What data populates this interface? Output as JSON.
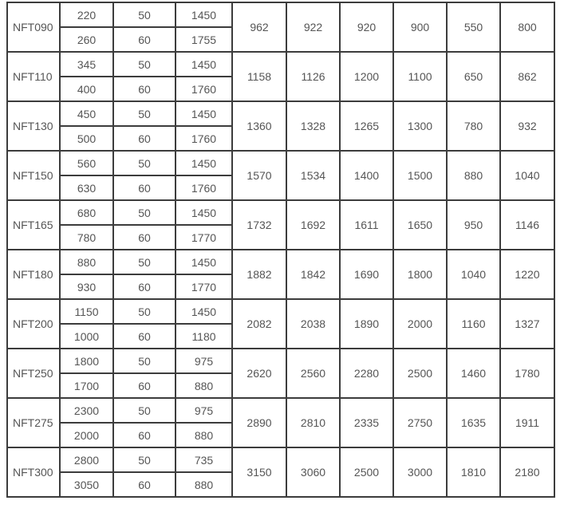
{
  "rows": [
    {
      "model": "NFT090",
      "sub": [
        [
          "220",
          "50",
          "1450"
        ],
        [
          "260",
          "60",
          "1755"
        ]
      ],
      "vals": [
        "962",
        "922",
        "920",
        "900",
        "550",
        "800"
      ]
    },
    {
      "model": "NFT110",
      "sub": [
        [
          "345",
          "50",
          "1450"
        ],
        [
          "400",
          "60",
          "1760"
        ]
      ],
      "vals": [
        "1158",
        "1126",
        "1200",
        "1100",
        "650",
        "862"
      ]
    },
    {
      "model": "NFT130",
      "sub": [
        [
          "450",
          "50",
          "1450"
        ],
        [
          "500",
          "60",
          "1760"
        ]
      ],
      "vals": [
        "1360",
        "1328",
        "1265",
        "1300",
        "780",
        "932"
      ]
    },
    {
      "model": "NFT150",
      "sub": [
        [
          "560",
          "50",
          "1450"
        ],
        [
          "630",
          "60",
          "1760"
        ]
      ],
      "vals": [
        "1570",
        "1534",
        "1400",
        "1500",
        "880",
        "1040"
      ]
    },
    {
      "model": "NFT165",
      "sub": [
        [
          "680",
          "50",
          "1450"
        ],
        [
          "780",
          "60",
          "1770"
        ]
      ],
      "vals": [
        "1732",
        "1692",
        "1611",
        "1650",
        "950",
        "1146"
      ]
    },
    {
      "model": "NFT180",
      "sub": [
        [
          "880",
          "50",
          "1450"
        ],
        [
          "930",
          "60",
          "1770"
        ]
      ],
      "vals": [
        "1882",
        "1842",
        "1690",
        "1800",
        "1040",
        "1220"
      ]
    },
    {
      "model": "NFT200",
      "sub": [
        [
          "1150",
          "50",
          "1450"
        ],
        [
          "1000",
          "60",
          "1180"
        ]
      ],
      "vals": [
        "2082",
        "2038",
        "1890",
        "2000",
        "1160",
        "1327"
      ]
    },
    {
      "model": "NFT250",
      "sub": [
        [
          "1800",
          "50",
          "975"
        ],
        [
          "1700",
          "60",
          "880"
        ]
      ],
      "vals": [
        "2620",
        "2560",
        "2280",
        "2500",
        "1460",
        "1780"
      ]
    },
    {
      "model": "NFT275",
      "sub": [
        [
          "2300",
          "50",
          "975"
        ],
        [
          "2000",
          "60",
          "880"
        ]
      ],
      "vals": [
        "2890",
        "2810",
        "2335",
        "2750",
        "1635",
        "1911"
      ]
    },
    {
      "model": "NFT300",
      "sub": [
        [
          "2800",
          "50",
          "735"
        ],
        [
          "3050",
          "60",
          "880"
        ]
      ],
      "vals": [
        "3150",
        "3060",
        "2500",
        "3000",
        "1810",
        "2180"
      ]
    }
  ]
}
